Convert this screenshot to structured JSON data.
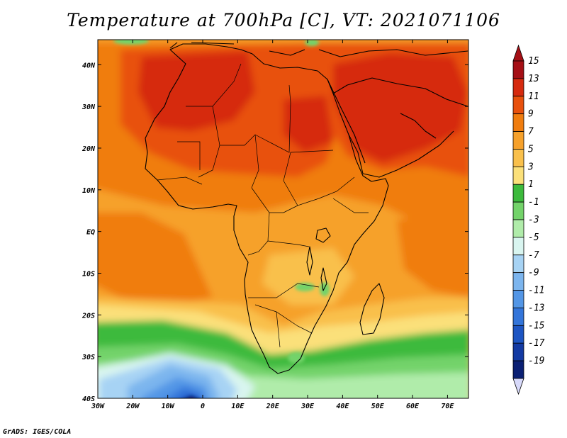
{
  "title": "Temperature at 700hPa [C], VT: 2021071106",
  "credit": "GrADS: IGES/COLA",
  "map": {
    "lon_range": [
      -30,
      76
    ],
    "lat_range": [
      -40,
      46
    ],
    "lon_ticks": [
      {
        "lon": -30,
        "label": "30W"
      },
      {
        "lon": -20,
        "label": "20W"
      },
      {
        "lon": -10,
        "label": "10W"
      },
      {
        "lon": 0,
        "label": "0"
      },
      {
        "lon": 10,
        "label": "10E"
      },
      {
        "lon": 20,
        "label": "20E"
      },
      {
        "lon": 30,
        "label": "30E"
      },
      {
        "lon": 40,
        "label": "40E"
      },
      {
        "lon": 50,
        "label": "50E"
      },
      {
        "lon": 60,
        "label": "60E"
      },
      {
        "lon": 70,
        "label": "70E"
      }
    ],
    "lat_ticks": [
      {
        "lat": 40,
        "label": "40N"
      },
      {
        "lat": 30,
        "label": "30N"
      },
      {
        "lat": 20,
        "label": "20N"
      },
      {
        "lat": 10,
        "label": "10N"
      },
      {
        "lat": 0,
        "label": "EQ"
      },
      {
        "lat": -10,
        "label": "10S"
      },
      {
        "lat": -20,
        "label": "20S"
      },
      {
        "lat": -30,
        "label": "30S"
      },
      {
        "lat": -40,
        "label": "40S"
      }
    ]
  },
  "colorbar": {
    "labels": [
      "15",
      "13",
      "11",
      "9",
      "7",
      "5",
      "3",
      "1",
      "-1",
      "-3",
      "-5",
      "-7",
      "-9",
      "-11",
      "-13",
      "-15",
      "-17",
      "-19"
    ],
    "colors": [
      "#a50f15",
      "#d62a0f",
      "#e8510d",
      "#f07d0f",
      "#f6a12b",
      "#f9c04c",
      "#fbe07a",
      "#3cba3c",
      "#73d36a",
      "#b0ecaa",
      "#d9f5f0",
      "#a7d3f4",
      "#7cb5ee",
      "#5396e6",
      "#3375da",
      "#1d55c3",
      "#133aa3",
      "#0b2074"
    ],
    "top_arrow_color": "#a50f15",
    "bottom_arrow_color": "#d7d9fa"
  }
}
